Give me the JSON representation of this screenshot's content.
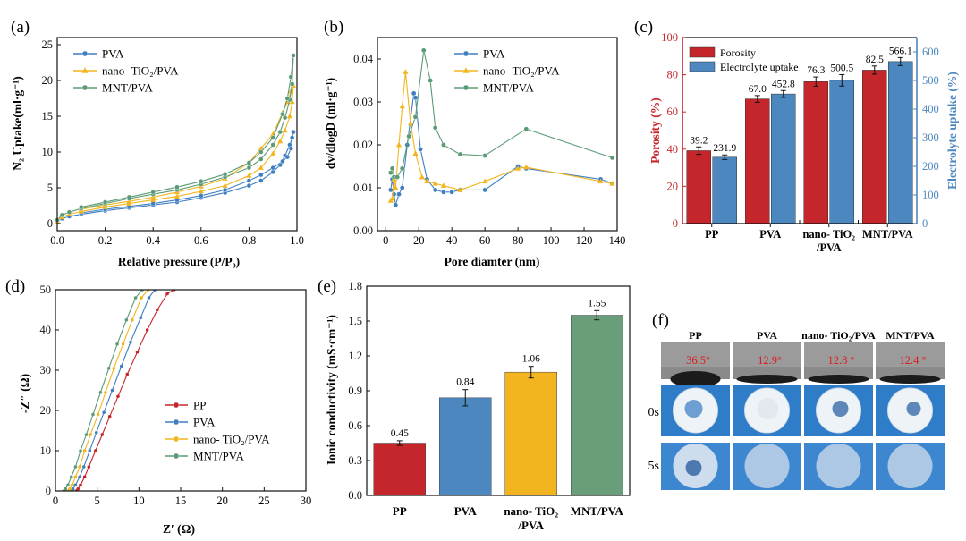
{
  "panels": {
    "a": {
      "letter": "(a)",
      "chart_data": {
        "type": "line",
        "title": "",
        "xlabel": "Relative pressure (P/P₀)",
        "ylabel": "N₂ Uptake(ml·g⁻¹)",
        "xlim": [
          0,
          1.0
        ],
        "ylim": [
          -1,
          26
        ],
        "xticks": [
          0.0,
          0.2,
          0.4,
          0.6,
          0.8,
          1.0
        ],
        "yticks": [
          0,
          5,
          10,
          15,
          20,
          25
        ],
        "xtick_labels": [
          "0.0",
          "0.2",
          "0.4",
          "0.6",
          "0.8",
          "1.0"
        ],
        "ytick_labels": [
          "0",
          "5",
          "10",
          "15",
          "20",
          "25"
        ],
        "legend": "top-left",
        "series": [
          {
            "name": "PVA",
            "color": "#3f7fc1",
            "marker": "circle",
            "x": [
              0.0,
              0.02,
              0.05,
              0.1,
              0.2,
              0.3,
              0.4,
              0.5,
              0.6,
              0.7,
              0.8,
              0.85,
              0.9,
              0.93,
              0.95,
              0.97,
              0.98,
              0.985,
              0.975,
              0.96,
              0.94,
              0.9,
              0.85,
              0.8,
              0.7,
              0.6,
              0.5,
              0.4,
              0.3,
              0.2,
              0.1
            ],
            "y": [
              0.3,
              0.7,
              1.0,
              1.3,
              1.8,
              2.2,
              2.6,
              3.0,
              3.6,
              4.3,
              5.3,
              6.0,
              7.2,
              8.2,
              9.5,
              11.0,
              12.0,
              12.8,
              10.5,
              9.3,
              8.7,
              7.8,
              6.8,
              6.0,
              4.7,
              3.9,
              3.3,
              2.8,
              2.4,
              2.0,
              1.5
            ]
          },
          {
            "name": "nano- TiO₂/PVA",
            "color": "#f2b51f",
            "marker": "triangle",
            "x": [
              0.0,
              0.02,
              0.05,
              0.1,
              0.2,
              0.3,
              0.4,
              0.5,
              0.6,
              0.7,
              0.8,
              0.85,
              0.9,
              0.93,
              0.95,
              0.97,
              0.98,
              0.985,
              0.975,
              0.96,
              0.94,
              0.9,
              0.85,
              0.8,
              0.7,
              0.6,
              0.5,
              0.4,
              0.3,
              0.2,
              0.1
            ],
            "y": [
              0.3,
              0.9,
              1.3,
              1.7,
              2.3,
              2.8,
              3.3,
              3.8,
              4.5,
              5.3,
              6.7,
              7.8,
              9.8,
              11.5,
              13.0,
              15.0,
              17.0,
              19.3,
              18.5,
              17.0,
              15.5,
              12.5,
              10.5,
              8.5,
              6.3,
              5.2,
              4.4,
              3.7,
              3.1,
              2.6,
              2.0
            ]
          },
          {
            "name": "MNT/PVA",
            "color": "#5b9a76",
            "marker": "circle",
            "x": [
              0.0,
              0.02,
              0.05,
              0.1,
              0.2,
              0.3,
              0.4,
              0.5,
              0.6,
              0.7,
              0.8,
              0.85,
              0.9,
              0.93,
              0.95,
              0.97,
              0.98,
              0.985,
              0.975,
              0.96,
              0.94,
              0.9,
              0.85,
              0.8,
              0.7,
              0.6,
              0.5,
              0.4,
              0.3,
              0.2,
              0.1
            ],
            "y": [
              0.5,
              1.2,
              1.6,
              2.1,
              2.8,
              3.5,
              4.1,
              4.7,
              5.5,
              6.5,
              7.8,
              9.0,
              11.0,
              12.8,
              14.8,
              17.3,
              19.5,
              23.5,
              20.5,
              17.5,
              15.3,
              12.0,
              10.0,
              8.5,
              6.9,
              5.9,
              5.1,
              4.4,
              3.7,
              3.0,
              2.3
            ]
          }
        ]
      }
    },
    "b": {
      "letter": "(b)",
      "chart_data": {
        "type": "line",
        "title": "",
        "xlabel": "Pore diamter (nm)",
        "ylabel": "dv/dlogD (ml·g⁻¹)",
        "xlim": [
          -5,
          140
        ],
        "ylim": [
          0,
          0.045
        ],
        "xticks": [
          0,
          20,
          40,
          60,
          80,
          100,
          120,
          140
        ],
        "yticks": [
          0.0,
          0.01,
          0.02,
          0.03,
          0.04
        ],
        "xtick_labels": [
          "0",
          "20",
          "40",
          "60",
          "80",
          "100",
          "120",
          "140"
        ],
        "ytick_labels": [
          "0.00",
          "0.01",
          "0.02",
          "0.03",
          "0.04"
        ],
        "legend": "top-right",
        "series": [
          {
            "name": "PVA",
            "color": "#3f7fc1",
            "marker": "circle",
            "x": [
              3,
              4,
              5,
              6,
              8,
              10,
              13,
              17,
              18,
              21,
              25,
              30,
              35,
              40,
              45,
              60,
              80,
              85,
              130,
              137
            ],
            "y": [
              0.0095,
              0.012,
              0.0085,
              0.006,
              0.0085,
              0.01,
              0.02,
              0.032,
              0.031,
              0.019,
              0.012,
              0.0095,
              0.009,
              0.009,
              0.0095,
              0.0095,
              0.015,
              0.0145,
              0.012,
              0.011
            ]
          },
          {
            "name": "nano- TiO₂/PVA",
            "color": "#f2b51f",
            "marker": "triangle",
            "x": [
              3,
              4,
              5,
              6,
              8,
              10,
              12,
              15,
              18,
              22,
              25,
              30,
              35,
              45,
              60,
              80,
              85,
              130,
              137
            ],
            "y": [
              0.007,
              0.0075,
              0.012,
              0.01,
              0.02,
              0.029,
              0.037,
              0.025,
              0.018,
              0.0125,
              0.0115,
              0.011,
              0.0105,
              0.0095,
              0.0115,
              0.0145,
              0.0148,
              0.0115,
              0.011
            ]
          },
          {
            "name": "MNT/PVA",
            "color": "#5b9a76",
            "marker": "circle",
            "x": [
              3,
              4,
              5,
              7,
              10,
              14,
              18,
              23,
              27,
              30,
              35,
              45,
              60,
              85,
              137
            ],
            "y": [
              0.0135,
              0.0145,
              0.0125,
              0.0125,
              0.0145,
              0.022,
              0.0265,
              0.042,
              0.035,
              0.024,
              0.02,
              0.0178,
              0.0175,
              0.0237,
              0.017
            ]
          }
        ]
      }
    },
    "c": {
      "letter": "(c)",
      "chart_data": {
        "type": "bar",
        "categories": [
          "PP",
          "PVA",
          "nano- TiO₂ /PVA",
          "MNT/PVA"
        ],
        "category_lines": [
          [
            "PP"
          ],
          [
            "PVA"
          ],
          [
            "nano- TiO₂",
            "/PVA"
          ],
          [
            "MNT/PVA"
          ]
        ],
        "ylabel": "Porosity (%)",
        "y2label": "Electrolyte uptake (%)",
        "ylim": [
          0,
          100
        ],
        "y2lim": [
          0,
          650
        ],
        "yticks": [
          0,
          20,
          40,
          60,
          80,
          100
        ],
        "y2ticks": [
          0,
          100,
          200,
          300,
          400,
          500,
          600
        ],
        "legend": "top-left",
        "series": [
          {
            "name": "Porosity",
            "color": "#c4262b",
            "axis": "left",
            "values": [
              39.2,
              67.0,
              76.3,
              82.5
            ],
            "errors": [
              2.0,
              1.8,
              2.5,
              2.2
            ],
            "labels": [
              "39.2",
              "67.0",
              "76.3",
              "82.5"
            ]
          },
          {
            "name": "Electrolyte uptake",
            "color": "#4d87bf",
            "axis": "right",
            "values": [
              231.9,
              452.8,
              500.5,
              566.1
            ],
            "errors": [
              8,
              12,
              20,
              14
            ],
            "labels": [
              "231.9",
              "452.8",
              "500.5",
              "566.1"
            ]
          }
        ],
        "axis_colors": {
          "left": "#c4262b",
          "right": "#4d87bf"
        }
      }
    },
    "d": {
      "letter": "(d)",
      "chart_data": {
        "type": "line",
        "xlabel": "Z′ (Ω)",
        "ylabel": "-Z″ (Ω)",
        "xlim": [
          0,
          30
        ],
        "ylim": [
          0,
          50
        ],
        "xticks": [
          0,
          5,
          10,
          15,
          20,
          25,
          30
        ],
        "yticks": [
          0,
          10,
          20,
          30,
          40,
          50
        ],
        "legend": "center-right",
        "series": [
          {
            "name": "PP",
            "color": "#c4262b",
            "x": [
              2.5,
              2.7,
              3.0,
              3.5,
              4.0,
              4.8,
              5.6,
              6.5,
              7.5,
              8.6,
              9.8,
              11.0,
              12.2,
              13.4,
              14.2
            ],
            "y": [
              0,
              0.5,
              1.5,
              3.5,
              6,
              10,
              14,
              18.5,
              23.5,
              29,
              34.5,
              40,
              45,
              49,
              50
            ]
          },
          {
            "name": "PVA",
            "color": "#3f7fc1",
            "x": [
              1.9,
              2.1,
              2.4,
              2.9,
              3.4,
              4.1,
              4.9,
              5.8,
              6.8,
              7.9,
              9.0,
              10.2,
              11.2,
              11.9
            ],
            "y": [
              0,
              0.5,
              1.5,
              3.5,
              6,
              10,
              14.5,
              19.5,
              25,
              31,
              37,
              43,
              48,
              50
            ]
          },
          {
            "name": "nano- TiO₂/PVA",
            "color": "#f2b51f",
            "x": [
              1.5,
              1.7,
              2.0,
              2.4,
              2.9,
              3.5,
              4.2,
              5.1,
              6.0,
              7.0,
              8.1,
              9.2,
              10.3,
              11.1
            ],
            "y": [
              0,
              0.5,
              1.5,
              3.5,
              6,
              10,
              14,
              19,
              24.5,
              30.5,
              36.5,
              42.5,
              48,
              50
            ]
          },
          {
            "name": "MNT/PVA",
            "color": "#5b9a76",
            "x": [
              1.0,
              1.2,
              1.5,
              1.9,
              2.4,
              3.0,
              3.7,
              4.5,
              5.4,
              6.4,
              7.4,
              8.5,
              9.6,
              10.4
            ],
            "y": [
              0,
              0.5,
              1.5,
              3.5,
              6,
              10,
              14,
              19,
              24.5,
              30.5,
              36.5,
              42.5,
              48,
              50
            ]
          }
        ]
      }
    },
    "e": {
      "letter": "(e)",
      "chart_data": {
        "type": "bar",
        "categories": [
          "PP",
          "PVA",
          "nano- TiO₂ /PVA",
          "MNT/PVA"
        ],
        "category_lines": [
          [
            "PP"
          ],
          [
            "PVA"
          ],
          [
            "nano- TiO₂",
            "/PVA"
          ],
          [
            "MNT/PVA"
          ]
        ],
        "ylabel": "Ionic conductivity (mS·cm⁻¹)",
        "ylim": [
          0,
          1.8
        ],
        "yticks": [
          0.0,
          0.3,
          0.6,
          0.9,
          1.2,
          1.5,
          1.8
        ],
        "ytick_labels": [
          "0.0",
          "0.3",
          "0.6",
          "0.9",
          "1.2",
          "1.5",
          "1.8"
        ],
        "values": [
          0.45,
          0.84,
          1.06,
          1.55
        ],
        "errors": [
          0.02,
          0.07,
          0.05,
          0.04
        ],
        "labels": [
          "0.45",
          "0.84",
          "1.06",
          "1.55"
        ],
        "colors": [
          "#c4262b",
          "#4d87bf",
          "#f2b51f",
          "#6a9e7a"
        ]
      }
    },
    "f": {
      "letter": "(f)",
      "columns": [
        "PP",
        "PVA",
        "nano- TiO₂/PVA",
        "MNT/PVA"
      ],
      "angles": [
        "36.5°",
        "12.9°",
        "12.8 °",
        "12.4 °"
      ],
      "row_labels": [
        "0s",
        "5s"
      ],
      "angle_color": "#e0191b"
    }
  }
}
